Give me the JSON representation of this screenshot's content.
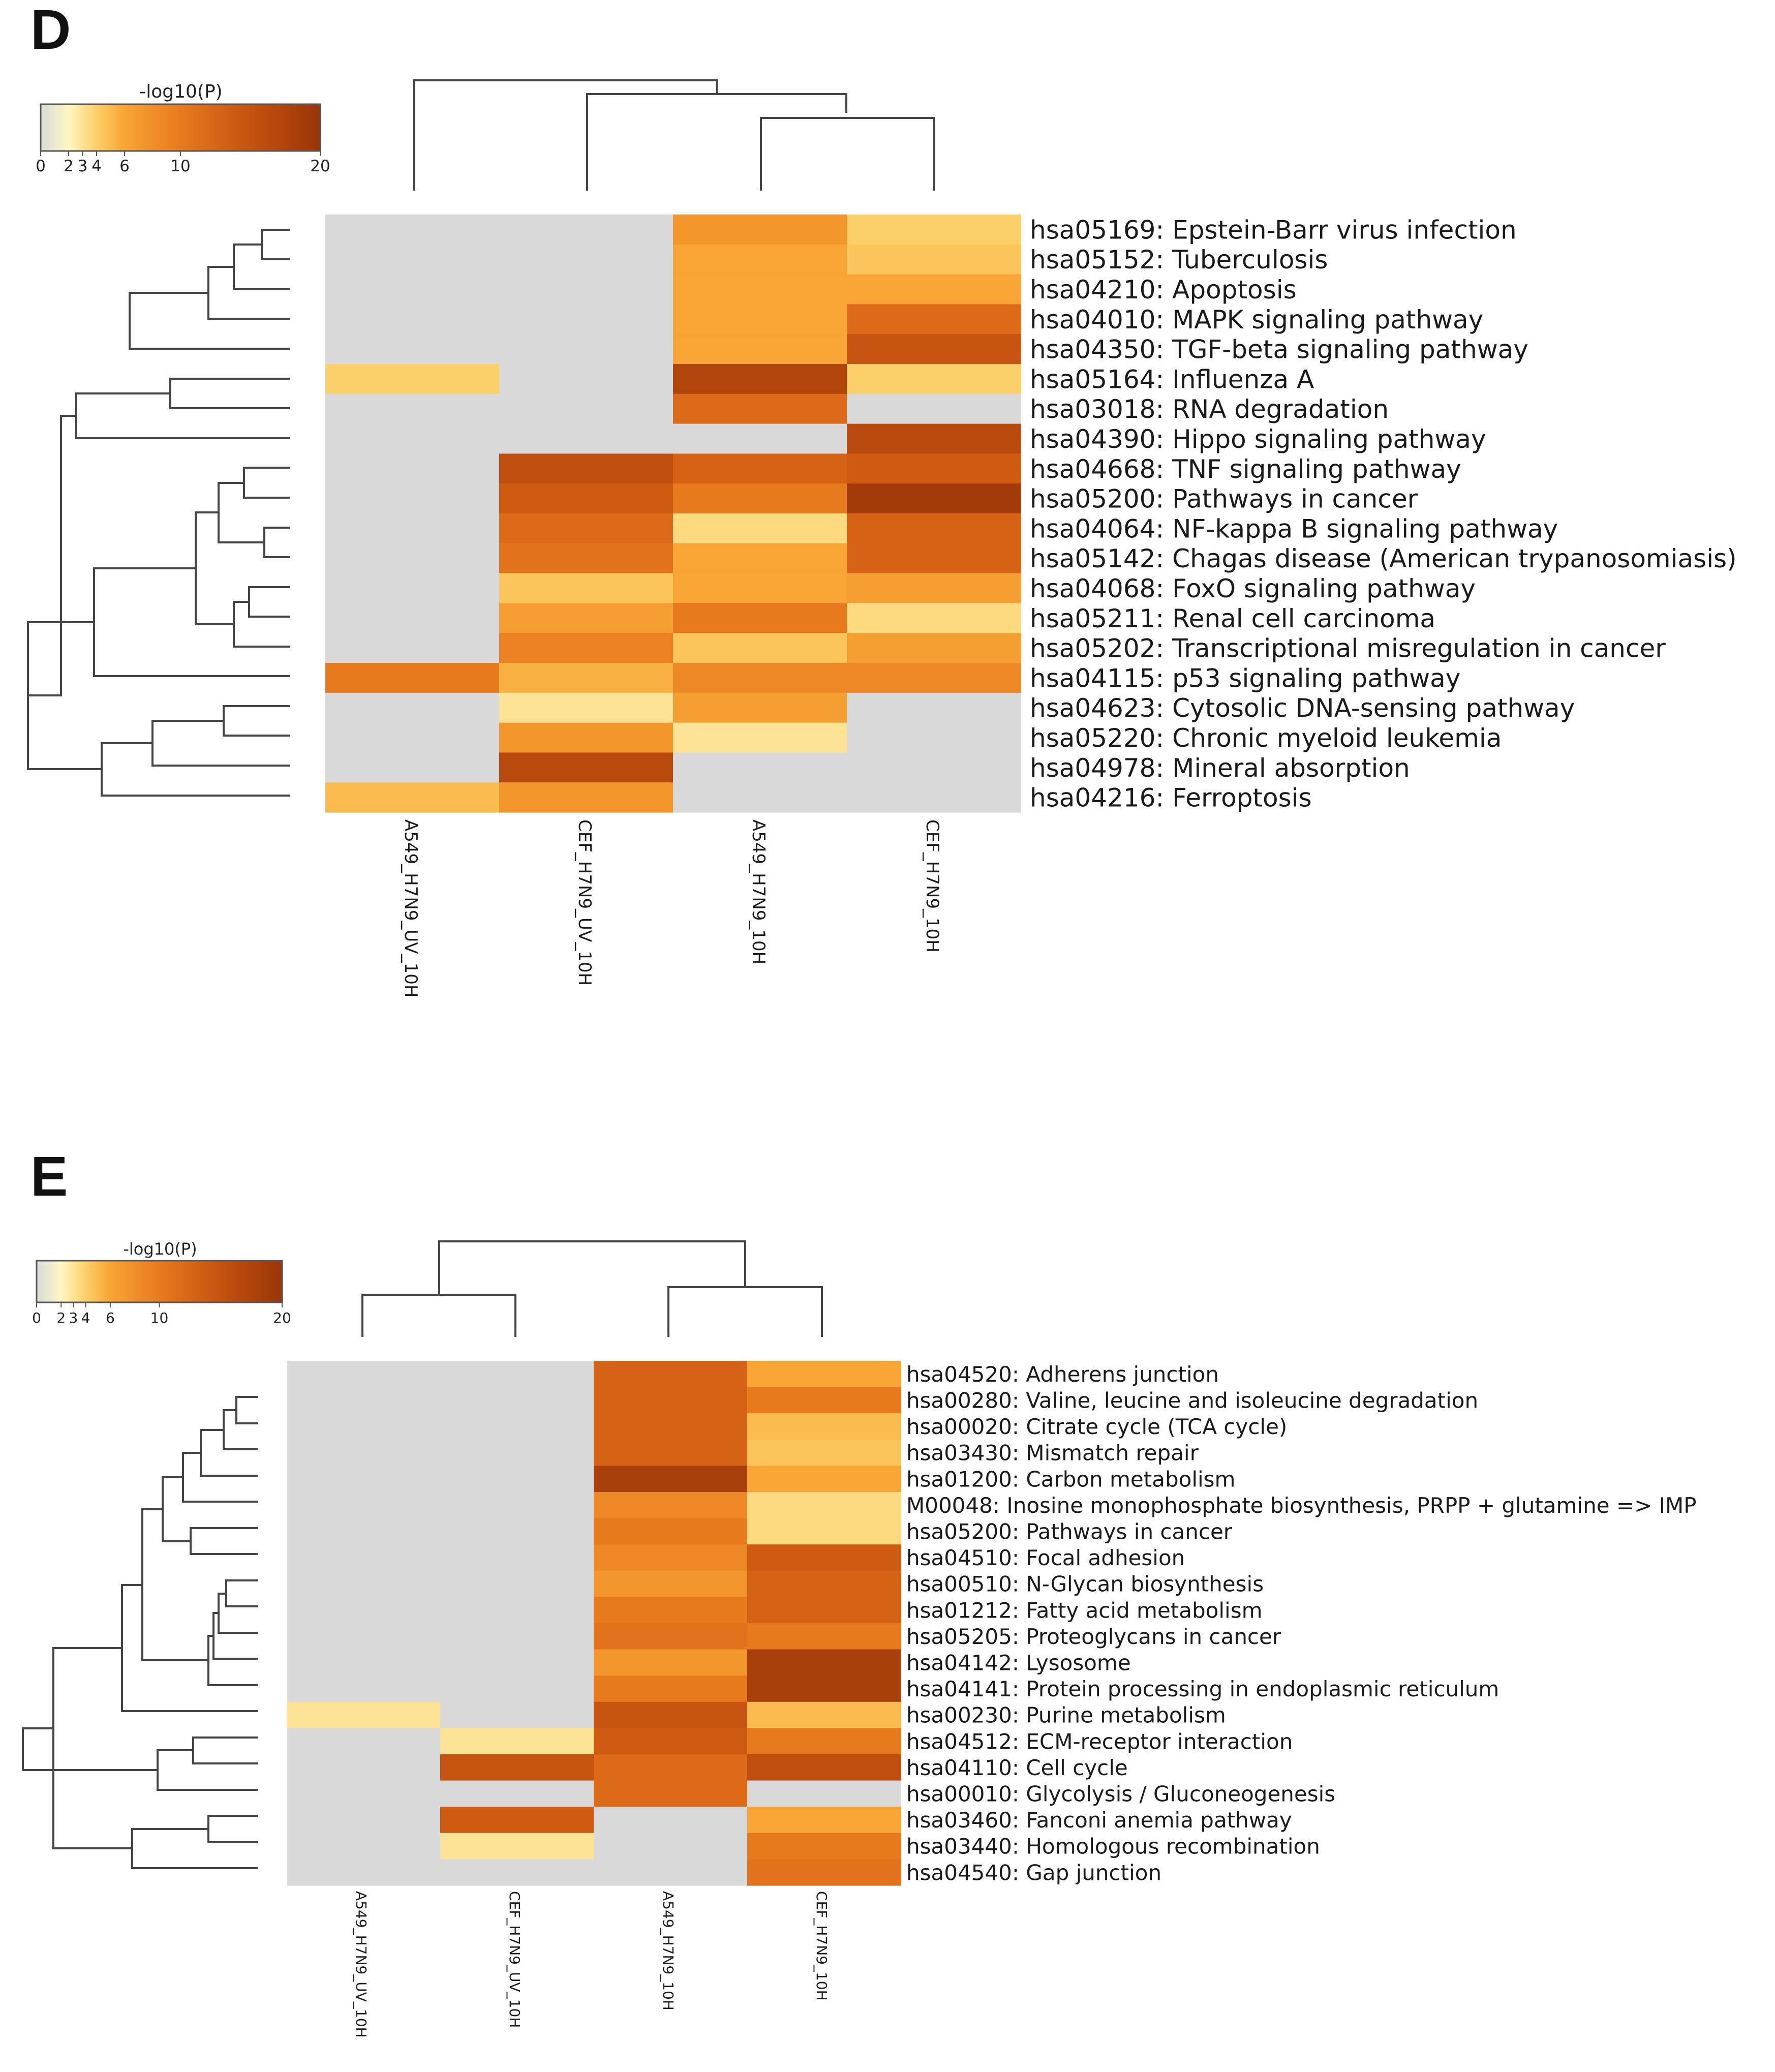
{
  "chart_data": [
    {
      "panel": "D",
      "type": "heatmap",
      "colorbar": {
        "title": "-log10(P)",
        "ticks": [
          "0",
          "2",
          "3",
          "4",
          "6",
          "10",
          "20"
        ],
        "tick_values": [
          0,
          2,
          3,
          4,
          6,
          10,
          20
        ],
        "vmin": 0,
        "vmax": 20
      },
      "columns": [
        "A549_H7N9_UV_10H",
        "CEF_H7N9_UV_10H",
        "A549_H7N9_10H",
        "CEF_H7N9_10H"
      ],
      "rows": [
        "hsa05169: Epstein-Barr virus infection",
        "hsa05152: Tuberculosis",
        "hsa04210: Apoptosis",
        "hsa04010: MAPK signaling pathway",
        "hsa04350: TGF-beta signaling pathway",
        "hsa05164: Influenza A",
        "hsa03018: RNA degradation",
        "hsa04390: Hippo signaling pathway",
        "hsa04668: TNF signaling pathway",
        "hsa05200: Pathways in cancer",
        "hsa04064: NF-kappa B signaling pathway",
        "hsa05142: Chagas disease (American trypanosomiasis)",
        "hsa04068: FoxO signaling pathway",
        "hsa05211: Renal cell carcinoma",
        "hsa05202: Transcriptional misregulation in cancer",
        "hsa04115: p53 signaling pathway",
        "hsa04623: Cytosolic DNA-sensing pathway",
        "hsa05220: Chronic myeloid leukemia",
        "hsa04978: Mineral absorption",
        "hsa04216: Ferroptosis"
      ],
      "values": [
        [
          null,
          null,
          7,
          4
        ],
        [
          null,
          null,
          6,
          4.5
        ],
        [
          null,
          null,
          6,
          6
        ],
        [
          null,
          null,
          6,
          11
        ],
        [
          null,
          null,
          6,
          14
        ],
        [
          4,
          null,
          17,
          4
        ],
        [
          null,
          null,
          11,
          null
        ],
        [
          null,
          null,
          null,
          16
        ],
        [
          null,
          15,
          12,
          13
        ],
        [
          null,
          13,
          9,
          19
        ],
        [
          null,
          11,
          3.5,
          12
        ],
        [
          null,
          10,
          6,
          12
        ],
        [
          null,
          4.5,
          6,
          6.5
        ],
        [
          null,
          6.5,
          9,
          3.5
        ],
        [
          null,
          8.5,
          4.5,
          6.5
        ],
        [
          9,
          5.5,
          8,
          8
        ],
        [
          null,
          3,
          6.5,
          null
        ],
        [
          null,
          7,
          3,
          null
        ],
        [
          null,
          16,
          null,
          null
        ],
        [
          5,
          7,
          null,
          null
        ]
      ]
    },
    {
      "panel": "E",
      "type": "heatmap",
      "colorbar": {
        "title": "-log10(P)",
        "ticks": [
          "0",
          "2",
          "3",
          "4",
          "6",
          "10",
          "20"
        ],
        "tick_values": [
          0,
          2,
          3,
          4,
          6,
          10,
          20
        ],
        "vmin": 0,
        "vmax": 20
      },
      "columns": [
        "A549_H7N9_UV_10H",
        "CEF_H7N9_UV_10H",
        "A549_H7N9_10H",
        "CEF_H7N9_10H"
      ],
      "rows": [
        "hsa04520: Adherens junction",
        "hsa00280: Valine, leucine and isoleucine degradation",
        "hsa00020: Citrate cycle (TCA cycle)",
        "hsa03430: Mismatch repair",
        "hsa01200: Carbon metabolism",
        "M00048: Inosine monophosphate biosynthesis, PRPP + glutamine => IMP",
        "hsa05200: Pathways in cancer",
        "hsa04510: Focal adhesion",
        "hsa00510: N-Glycan biosynthesis",
        "hsa01212: Fatty acid metabolism",
        "hsa05205: Proteoglycans in cancer",
        "hsa04142: Lysosome",
        "hsa04141: Protein processing in endoplasmic reticulum",
        "hsa00230: Purine metabolism",
        "hsa04512: ECM-receptor interaction",
        "hsa04110: Cell cycle",
        "hsa00010: Glycolysis / Gluconeogenesis",
        "hsa03460: Fanconi anemia pathway",
        "hsa03440: Homologous recombination",
        "hsa04540: Gap junction"
      ],
      "values": [
        [
          null,
          null,
          12,
          6
        ],
        [
          null,
          null,
          12,
          9
        ],
        [
          null,
          null,
          12,
          5
        ],
        [
          null,
          null,
          12,
          4.5
        ],
        [
          null,
          null,
          18,
          6
        ],
        [
          null,
          null,
          8,
          3.5
        ],
        [
          null,
          null,
          9,
          3.5
        ],
        [
          null,
          null,
          8,
          13
        ],
        [
          null,
          null,
          7,
          12
        ],
        [
          null,
          null,
          9,
          12
        ],
        [
          null,
          null,
          10,
          9
        ],
        [
          null,
          null,
          7,
          18
        ],
        [
          null,
          null,
          9,
          18
        ],
        [
          3,
          null,
          14,
          5
        ],
        [
          null,
          3,
          13,
          9
        ],
        [
          null,
          14,
          11,
          15
        ],
        [
          null,
          null,
          11,
          null
        ],
        [
          null,
          13,
          null,
          6
        ],
        [
          null,
          3,
          null,
          9
        ],
        [
          null,
          null,
          null,
          10
        ]
      ]
    }
  ],
  "panels": {
    "d_letter": "D",
    "e_letter": "E"
  },
  "colors": {
    "missing": "#d9d9d9",
    "scale": [
      "#d9d9d9",
      "#fef6c2",
      "#fcd069",
      "#f8a535",
      "#f08c22",
      "#d9621a",
      "#a23c0a"
    ]
  }
}
